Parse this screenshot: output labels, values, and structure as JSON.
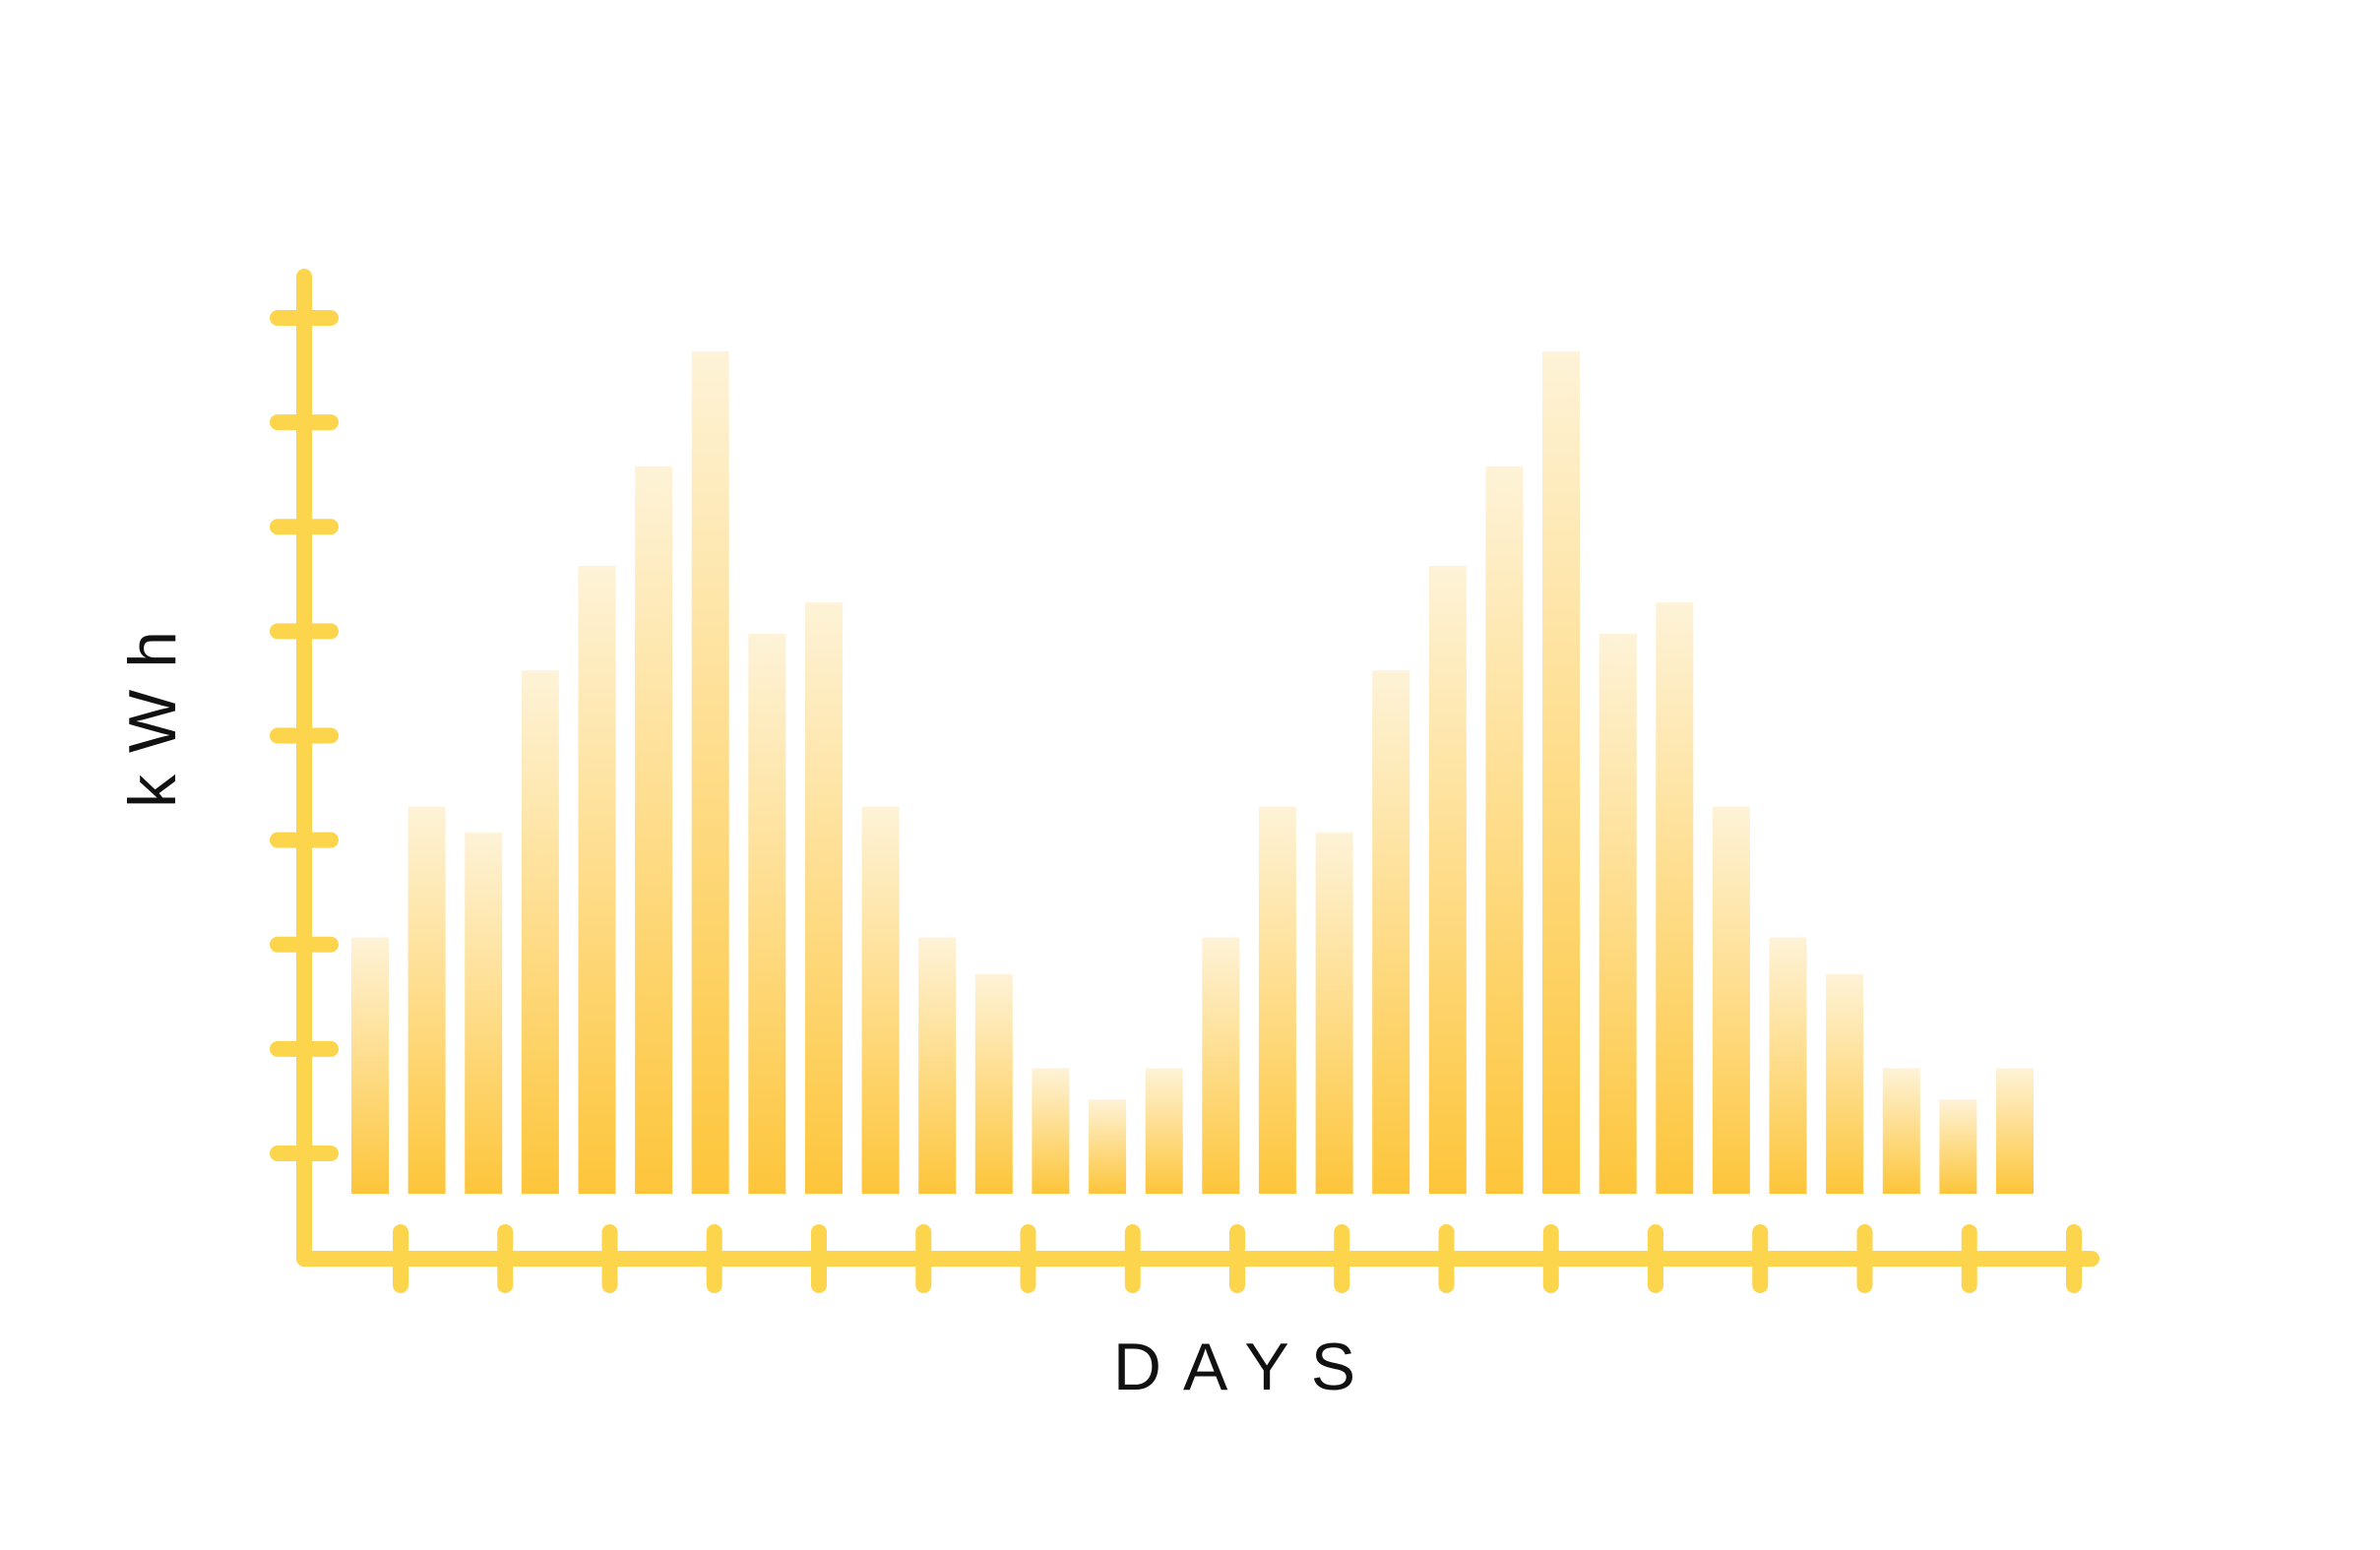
{
  "chart_data": {
    "type": "bar",
    "title": "",
    "xlabel": "DAYS",
    "ylabel": "kWh",
    "grid": false,
    "legend": "none",
    "ylim": [
      0,
      9
    ],
    "y_tick_count": 9,
    "x_tick_count": 17,
    "colors": {
      "axis": "#FDD54D",
      "bar_bottom": "#FDC53A",
      "bar_top": "#FEF3D8"
    },
    "values": [
      2.45,
      3.7,
      3.45,
      5.0,
      6.0,
      6.95,
      8.05,
      5.35,
      5.65,
      3.7,
      2.45,
      2.1,
      1.2,
      0.9,
      1.2,
      2.45,
      3.7,
      3.45,
      5.0,
      6.0,
      6.95,
      8.05,
      5.35,
      5.65,
      3.7,
      2.45,
      2.1,
      1.2,
      0.9,
      1.2
    ]
  }
}
